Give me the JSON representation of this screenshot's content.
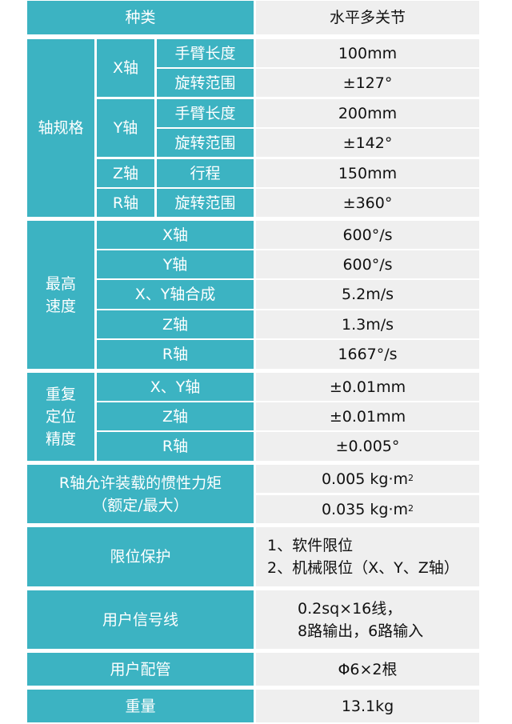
{
  "header": {
    "label": "种类",
    "value": "水平多关节"
  },
  "axis_spec": {
    "label": "轴规格",
    "x": {
      "label": "X轴",
      "arm_length": {
        "label": "手臂长度",
        "value": "100mm"
      },
      "rotation": {
        "label": "旋转范围",
        "value": "±127°"
      }
    },
    "y": {
      "label": "Y轴",
      "arm_length": {
        "label": "手臂长度",
        "value": "200mm"
      },
      "rotation": {
        "label": "旋转范围",
        "value": "±142°"
      }
    },
    "z": {
      "label": "Z轴",
      "stroke": {
        "label": "行程",
        "value": "150mm"
      }
    },
    "r": {
      "label": "R轴",
      "rotation": {
        "label": "旋转范围",
        "value": "±360°"
      }
    }
  },
  "max_speed": {
    "label": "最高\n速度",
    "rows": [
      {
        "label": "X轴",
        "value": "600°/s"
      },
      {
        "label": "Y轴",
        "value": "600°/s"
      },
      {
        "label": "X、Y轴合成",
        "value": "5.2m/s"
      },
      {
        "label": "Z轴",
        "value": "1.3m/s"
      },
      {
        "label": "R轴",
        "value": "1667°/s"
      }
    ]
  },
  "repeatability": {
    "label": "重复\n定位\n精度",
    "rows": [
      {
        "label": "X、Y轴",
        "value": "±0.01mm"
      },
      {
        "label": "Z轴",
        "value": "±0.01mm"
      },
      {
        "label": "R轴",
        "value": "±0.005°"
      }
    ]
  },
  "inertia": {
    "label": "R轴允许装载的惯性力矩\n（额定/最大）",
    "rated": "0.005 kg·m",
    "max": "0.035 kg·m",
    "exponent": "2"
  },
  "limit_protection": {
    "label": "限位保护",
    "value": "1、软件限位\n2、机械限位（X、Y、Z轴）"
  },
  "user_signal": {
    "label": "用户信号线",
    "value": "0.2sq×16线，\n8路输出，6路输入"
  },
  "user_piping": {
    "label": "用户配管",
    "value": "Φ6×2根"
  },
  "weight": {
    "label": "重量",
    "value": "13.1kg"
  },
  "colors": {
    "header_bg": "#3cb3c2",
    "value_bg": "#efefef"
  }
}
